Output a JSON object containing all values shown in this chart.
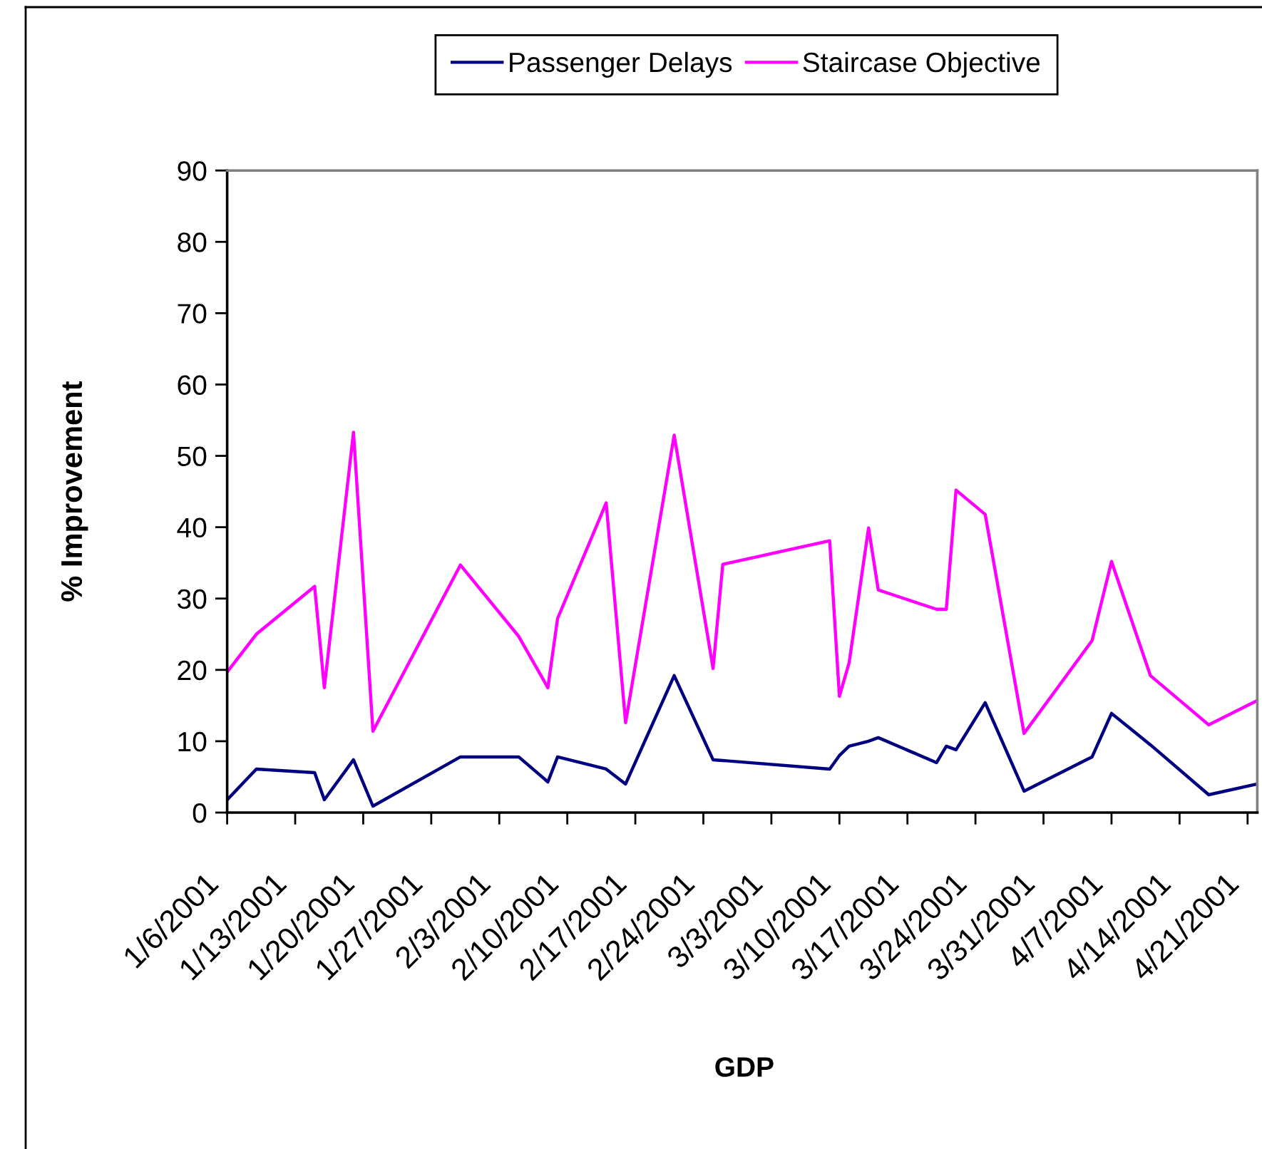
{
  "chart_data": {
    "type": "line",
    "xlabel": "GDP",
    "ylabel": "% Improvement",
    "x": [
      "2001-01-06",
      "2001-01-09",
      "2001-01-15",
      "2001-01-16",
      "2001-01-19",
      "2001-01-21",
      "2001-01-30",
      "2001-02-05",
      "2001-02-08",
      "2001-02-09",
      "2001-02-14",
      "2001-02-16",
      "2001-02-21",
      "2001-02-25",
      "2001-02-26",
      "2001-03-09",
      "2001-03-10",
      "2001-03-11",
      "2001-03-13",
      "2001-03-14",
      "2001-03-20",
      "2001-03-21",
      "2001-03-22",
      "2001-03-25",
      "2001-03-29",
      "2001-04-05",
      "2001-04-07",
      "2001-04-11",
      "2001-04-17",
      "2001-04-22"
    ],
    "series": [
      {
        "name": "Passenger Delays",
        "color": "#000080",
        "values": [
          1.8,
          6.1,
          5.6,
          1.8,
          7.4,
          0.9,
          7.8,
          7.8,
          4.3,
          7.8,
          6.1,
          4.0,
          19.2,
          7.4,
          7.3,
          6.1,
          8.0,
          9.3,
          10.0,
          10.5,
          7.0,
          9.3,
          8.8,
          15.4,
          3.0,
          7.8,
          13.9,
          9.5,
          2.5,
          4.0
        ]
      },
      {
        "name": "Staircase Objective",
        "color": "#ff00ff",
        "values": [
          19.7,
          25.0,
          31.7,
          17.5,
          53.3,
          11.4,
          34.7,
          24.7,
          17.5,
          27.2,
          43.4,
          12.6,
          52.9,
          20.2,
          34.8,
          38.1,
          16.3,
          21.0,
          39.9,
          31.2,
          28.5,
          28.5,
          45.2,
          41.8,
          11.1,
          24.1,
          35.2,
          19.2,
          12.3,
          15.7
        ]
      }
    ],
    "xlim": [
      "2001-01-06",
      "2001-04-22"
    ],
    "xticks": [
      {
        "value": "2001-01-06",
        "label": "1/6/2001"
      },
      {
        "value": "2001-01-13",
        "label": "1/13/2001"
      },
      {
        "value": "2001-01-20",
        "label": "1/20/2001"
      },
      {
        "value": "2001-01-27",
        "label": "1/27/2001"
      },
      {
        "value": "2001-02-03",
        "label": "2/3/2001"
      },
      {
        "value": "2001-02-10",
        "label": "2/10/2001"
      },
      {
        "value": "2001-02-17",
        "label": "2/17/2001"
      },
      {
        "value": "2001-02-24",
        "label": "2/24/2001"
      },
      {
        "value": "2001-03-03",
        "label": "3/3/2001"
      },
      {
        "value": "2001-03-10",
        "label": "3/10/2001"
      },
      {
        "value": "2001-03-17",
        "label": "3/17/2001"
      },
      {
        "value": "2001-03-24",
        "label": "3/24/2001"
      },
      {
        "value": "2001-03-31",
        "label": "3/31/2001"
      },
      {
        "value": "2001-04-07",
        "label": "4/7/2001"
      },
      {
        "value": "2001-04-14",
        "label": "4/14/2001"
      },
      {
        "value": "2001-04-21",
        "label": "4/21/2001"
      }
    ],
    "ylim": [
      0,
      90
    ],
    "yticks": [
      0,
      10,
      20,
      30,
      40,
      50,
      60,
      70,
      80,
      90
    ],
    "grid": false,
    "legend": "top",
    "marker": "none",
    "line_style": "solid"
  }
}
